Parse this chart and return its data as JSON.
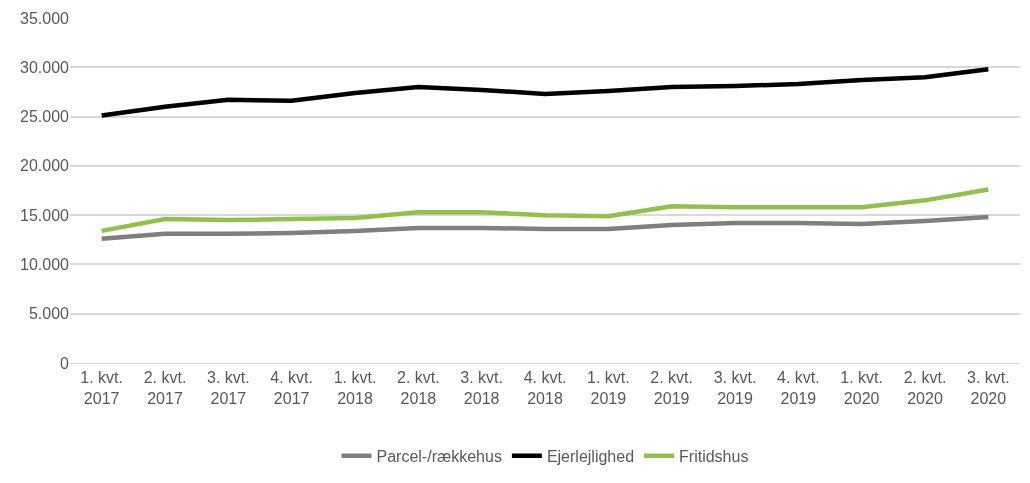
{
  "chart_data": {
    "type": "line",
    "categories": [
      "1. kvt.\n2017",
      "2. kvt.\n2017",
      "3. kvt.\n2017",
      "4. kvt.\n2017",
      "1. kvt.\n2018",
      "2. kvt.\n2018",
      "3. kvt.\n2018",
      "4. kvt.\n2018",
      "1. kvt.\n2019",
      "2. kvt.\n2019",
      "3. kvt.\n2019",
      "4. kvt.\n2019",
      "1. kvt.\n2020",
      "2. kvt.\n2020",
      "3. kvt.\n2020"
    ],
    "series": [
      {
        "name": "Parcel-/rækkehus",
        "color": "#7f7f7f",
        "values": [
          12600,
          13100,
          13100,
          13200,
          13400,
          13700,
          13700,
          13600,
          13600,
          14000,
          14200,
          14200,
          14100,
          14400,
          14800
        ]
      },
      {
        "name": "Ejerlejlighed",
        "color": "#000000",
        "values": [
          25100,
          26000,
          26700,
          26600,
          27400,
          28000,
          27700,
          27300,
          27600,
          28000,
          28100,
          28300,
          28700,
          29000,
          29800
        ]
      },
      {
        "name": "Fritidshus",
        "color": "#92c050",
        "values": [
          13400,
          14600,
          14500,
          14600,
          14700,
          15300,
          15300,
          15000,
          14900,
          15900,
          15800,
          15800,
          15800,
          16500,
          17600
        ]
      }
    ],
    "ylim": [
      0,
      35000
    ],
    "yticks": [
      0,
      {
        "value": 5000,
        "label": "5.000"
      },
      {
        "value": 10000,
        "label": "10.000"
      },
      {
        "value": 15000,
        "label": "15.000"
      },
      {
        "value": 20000,
        "label": "20.000"
      },
      {
        "value": 25000,
        "label": "25.000"
      },
      {
        "value": 30000,
        "label": "30.000"
      },
      {
        "value": 35000,
        "label": "35.000"
      }
    ],
    "grid": "y",
    "legend": "bottom",
    "marker": "none",
    "line_style": "solid"
  }
}
